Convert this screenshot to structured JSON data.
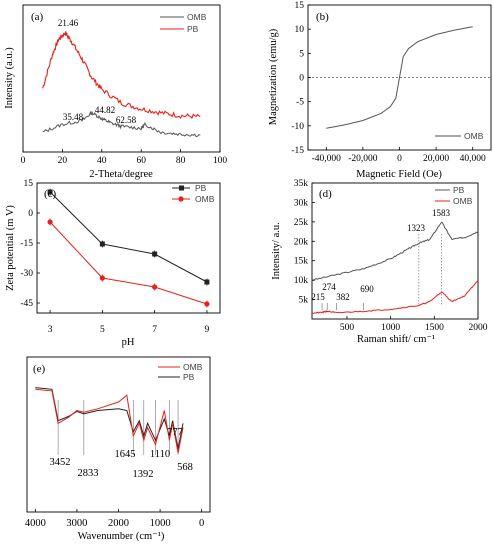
{
  "colors": {
    "black_series": "#333333",
    "red_series": "#e8201c",
    "gray_series": "#555555"
  },
  "chart_data": [
    {
      "panel": "(a)",
      "type": "line",
      "xlabel": "2-Theta/degree",
      "ylabel": "Intensity (a.u.)",
      "xlim": [
        0,
        100
      ],
      "xticks": [
        0,
        20,
        40,
        60,
        80,
        100
      ],
      "series": [
        {
          "name": "OMB",
          "color": "#555555",
          "x": [
            10,
            20,
            30,
            35,
            40,
            44,
            50,
            60,
            62,
            70,
            80,
            90
          ],
          "y": [
            0.1,
            0.18,
            0.22,
            0.3,
            0.24,
            0.2,
            0.16,
            0.14,
            0.18,
            0.1,
            0.08,
            0.07
          ]
        },
        {
          "name": "PB",
          "color": "#e8201c",
          "x": [
            10,
            15,
            18,
            21.46,
            25,
            30,
            35,
            40,
            50,
            60,
            70,
            80,
            90
          ],
          "y": [
            0.55,
            0.9,
            1.05,
            1.12,
            1.02,
            0.85,
            0.66,
            0.54,
            0.4,
            0.34,
            0.3,
            0.27,
            0.26
          ]
        }
      ],
      "annotations": [
        "21.46",
        "35.48",
        "44.82",
        "62.58"
      ],
      "legend_position": "top-right"
    },
    {
      "panel": "(b)",
      "type": "line",
      "xlabel": "Magnetic Field (Oe)",
      "ylabel": "Magnetization (emu/g)",
      "xlim": [
        -50000,
        50000
      ],
      "ylim": [
        -15,
        15
      ],
      "xticks": [
        -40000,
        -20000,
        0,
        20000,
        40000
      ],
      "xtick_labels": [
        "-40,000",
        "-20,000",
        "0",
        "20,000",
        "40,000"
      ],
      "yticks": [
        -15,
        -10,
        -5,
        0,
        5,
        10,
        15
      ],
      "series": [
        {
          "name": "OMB",
          "color": "#555555",
          "x": [
            -40000,
            -30000,
            -20000,
            -10000,
            -5000,
            -2000,
            0,
            2000,
            5000,
            10000,
            20000,
            30000,
            40000
          ],
          "y": [
            -10.5,
            -9.8,
            -8.9,
            -7.4,
            -6.0,
            -4.3,
            0,
            4.3,
            6.0,
            7.4,
            8.9,
            9.8,
            10.5
          ]
        }
      ],
      "legend_position": "bottom-right"
    },
    {
      "panel": "(c)",
      "type": "line",
      "xlabel": "pH",
      "ylabel": "Zeta potential (m V)",
      "xlim": [
        2.5,
        9.5
      ],
      "ylim": [
        -50,
        15
      ],
      "xticks": [
        3,
        5,
        7,
        9
      ],
      "yticks": [
        -45,
        -30,
        -15,
        0,
        15
      ],
      "series": [
        {
          "name": "PB",
          "color": "#222222",
          "x": [
            3,
            5,
            7,
            9
          ],
          "y": [
            10.5,
            -15.5,
            -20.5,
            -34.5
          ]
        },
        {
          "name": "OMB",
          "color": "#e8201c",
          "x": [
            3,
            5,
            7,
            9
          ],
          "y": [
            -4.5,
            -32.5,
            -37.0,
            -45.5
          ]
        }
      ],
      "legend_position": "top-right"
    },
    {
      "panel": "(d)",
      "type": "line",
      "xlabel": "Raman shift/ cm⁻¹",
      "ylabel": "Intensity/ a.u.",
      "xlim": [
        100,
        2000
      ],
      "ylim": [
        0,
        35000
      ],
      "xticks": [
        500,
        1000,
        1500,
        2000
      ],
      "yticks": [
        5000,
        10000,
        15000,
        20000,
        25000,
        30000,
        35000
      ],
      "ytick_labels": [
        "5k",
        "10k",
        "15k",
        "20k",
        "25k",
        "30k",
        "35k"
      ],
      "series": [
        {
          "name": "PB",
          "color": "#555555",
          "x": [
            100,
            400,
            700,
            1000,
            1200,
            1323,
            1450,
            1583,
            1700,
            1850,
            2000
          ],
          "y": [
            10000,
            11500,
            13000,
            15500,
            18000,
            19500,
            20500,
            25000,
            20500,
            21000,
            22500
          ]
        },
        {
          "name": "OMB",
          "color": "#e8201c",
          "x": [
            100,
            215,
            274,
            382,
            690,
            1000,
            1323,
            1450,
            1583,
            1700,
            1850,
            2000
          ],
          "y": [
            1500,
            1700,
            2000,
            1600,
            2000,
            2500,
            3500,
            4500,
            7000,
            4500,
            6000,
            10000
          ]
        }
      ],
      "annotations": [
        "215",
        "274",
        "382",
        "690",
        "1323",
        "1583"
      ],
      "legend_position": "top-right"
    },
    {
      "panel": "(e)",
      "type": "line",
      "xlabel": "Wavenumber (cm⁻¹)",
      "ylabel": "",
      "xlim": [
        4000,
        400
      ],
      "xticks": [
        4000,
        3000,
        2000,
        1000,
        0
      ],
      "series": [
        {
          "name": "OMB",
          "color": "#e8201c",
          "x": [
            4000,
            3600,
            3452,
            3200,
            3000,
            2833,
            2500,
            2000,
            1800,
            1645,
            1500,
            1392,
            1300,
            1110,
            900,
            777,
            700,
            568,
            450
          ],
          "y": [
            0.95,
            0.93,
            0.55,
            0.62,
            0.7,
            0.68,
            0.72,
            0.8,
            0.88,
            0.4,
            0.55,
            0.35,
            0.5,
            0.3,
            0.7,
            0.35,
            0.55,
            0.2,
            0.5
          ]
        },
        {
          "name": "PB",
          "color": "#222222",
          "x": [
            4000,
            3600,
            3452,
            3200,
            3000,
            2833,
            2500,
            2000,
            1800,
            1645,
            1500,
            1392,
            1300,
            1110,
            900,
            777,
            700,
            568,
            450
          ],
          "y": [
            0.97,
            0.95,
            0.58,
            0.63,
            0.69,
            0.66,
            0.7,
            0.72,
            0.7,
            0.45,
            0.58,
            0.4,
            0.55,
            0.35,
            0.6,
            0.4,
            0.58,
            0.25,
            0.55
          ]
        }
      ],
      "annotations": [
        "3452",
        "2833",
        "1645",
        "1392",
        "1110",
        "777",
        "568"
      ],
      "legend_position": "top-right"
    }
  ]
}
